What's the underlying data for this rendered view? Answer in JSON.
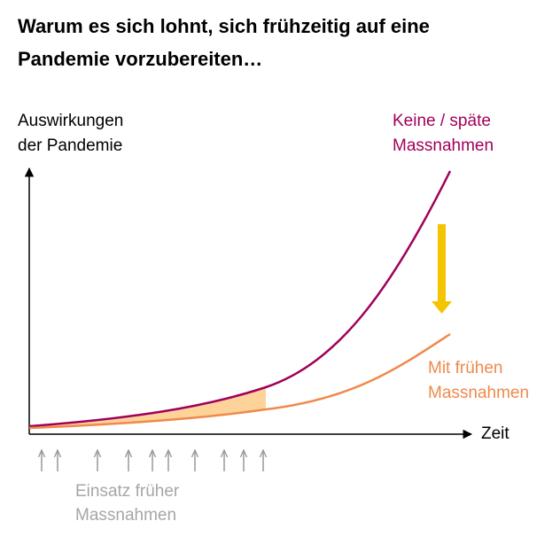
{
  "title": [
    "Warum es sich lohnt, sich frühzeitig auf eine",
    "Pandemie vorzubereiten…"
  ],
  "y_axis_label": [
    "Auswirkungen",
    "der Pandemie"
  ],
  "x_axis_label": "Zeit",
  "curves": [
    {
      "label": [
        "Keine / späte",
        "Massnahmen"
      ],
      "color": "#a0005a"
    },
    {
      "label": [
        "Mit frühen",
        "Massnahmen"
      ],
      "color": "#f0894a"
    }
  ],
  "annotation": [
    "Einsatz früher",
    "Massnahmen"
  ]
}
